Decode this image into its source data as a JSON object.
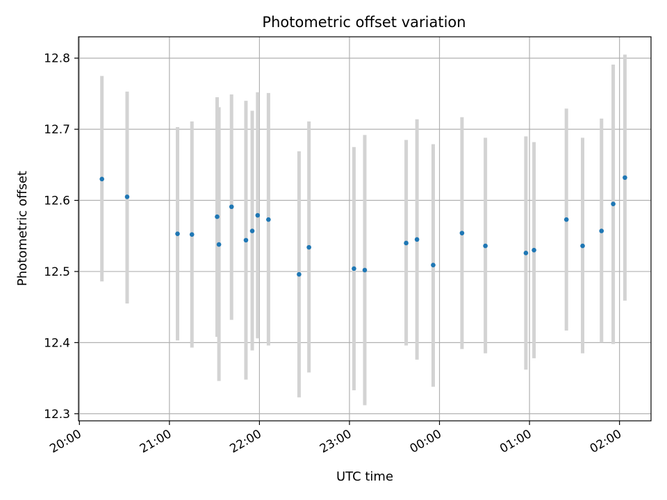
{
  "chart_data": {
    "type": "scatter",
    "title": "Photometric offset variation",
    "xlabel": "UTC time",
    "ylabel": "Photometric offset",
    "x_unit": "hours after 20:00 UTC",
    "xlim": [
      -0.01,
      6.35
    ],
    "ylim": [
      12.29,
      12.83
    ],
    "x_ticks": [
      {
        "value": 0,
        "label": "20:00"
      },
      {
        "value": 1,
        "label": "21:00"
      },
      {
        "value": 2,
        "label": "22:00"
      },
      {
        "value": 3,
        "label": "23:00"
      },
      {
        "value": 4,
        "label": "00:00"
      },
      {
        "value": 5,
        "label": "01:00"
      },
      {
        "value": 6,
        "label": "02:00"
      }
    ],
    "y_ticks": [
      12.3,
      12.4,
      12.5,
      12.6,
      12.7,
      12.8
    ],
    "y_tick_labels": [
      "12.3",
      "12.4",
      "12.5",
      "12.6",
      "12.7",
      "12.8"
    ],
    "grid": true,
    "colors": {
      "marker": "#1f77b4",
      "errorbar": "#d3d3d3",
      "grid": "#b0b0b0",
      "axes": "#000000"
    },
    "series": [
      {
        "points": [
          {
            "x": 0.25,
            "y": 12.63,
            "ylo": 12.486,
            "yhi": 12.775
          },
          {
            "x": 0.53,
            "y": 12.605,
            "ylo": 12.455,
            "yhi": 12.753
          },
          {
            "x": 1.09,
            "y": 12.553,
            "ylo": 12.403,
            "yhi": 12.703
          },
          {
            "x": 1.25,
            "y": 12.552,
            "ylo": 12.393,
            "yhi": 12.711
          },
          {
            "x": 1.53,
            "y": 12.577,
            "ylo": 12.408,
            "yhi": 12.745
          },
          {
            "x": 1.55,
            "y": 12.538,
            "ylo": 12.346,
            "yhi": 12.731
          },
          {
            "x": 1.69,
            "y": 12.591,
            "ylo": 12.432,
            "yhi": 12.749
          },
          {
            "x": 1.85,
            "y": 12.544,
            "ylo": 12.348,
            "yhi": 12.74
          },
          {
            "x": 1.92,
            "y": 12.557,
            "ylo": 12.389,
            "yhi": 12.726
          },
          {
            "x": 1.98,
            "y": 12.579,
            "ylo": 12.406,
            "yhi": 12.752
          },
          {
            "x": 2.1,
            "y": 12.573,
            "ylo": 12.396,
            "yhi": 12.751
          },
          {
            "x": 2.44,
            "y": 12.496,
            "ylo": 12.323,
            "yhi": 12.669
          },
          {
            "x": 2.55,
            "y": 12.534,
            "ylo": 12.358,
            "yhi": 12.711
          },
          {
            "x": 3.05,
            "y": 12.504,
            "ylo": 12.333,
            "yhi": 12.675
          },
          {
            "x": 3.17,
            "y": 12.502,
            "ylo": 12.312,
            "yhi": 12.692
          },
          {
            "x": 3.63,
            "y": 12.54,
            "ylo": 12.396,
            "yhi": 12.685
          },
          {
            "x": 3.75,
            "y": 12.545,
            "ylo": 12.376,
            "yhi": 12.714
          },
          {
            "x": 3.93,
            "y": 12.509,
            "ylo": 12.338,
            "yhi": 12.679
          },
          {
            "x": 4.25,
            "y": 12.554,
            "ylo": 12.391,
            "yhi": 12.717
          },
          {
            "x": 4.51,
            "y": 12.536,
            "ylo": 12.385,
            "yhi": 12.688
          },
          {
            "x": 4.96,
            "y": 12.526,
            "ylo": 12.362,
            "yhi": 12.69
          },
          {
            "x": 5.05,
            "y": 12.53,
            "ylo": 12.378,
            "yhi": 12.682
          },
          {
            "x": 5.41,
            "y": 12.573,
            "ylo": 12.417,
            "yhi": 12.729
          },
          {
            "x": 5.59,
            "y": 12.536,
            "ylo": 12.385,
            "yhi": 12.688
          },
          {
            "x": 5.8,
            "y": 12.557,
            "ylo": 12.4,
            "yhi": 12.715
          },
          {
            "x": 5.93,
            "y": 12.595,
            "ylo": 12.398,
            "yhi": 12.791
          },
          {
            "x": 6.06,
            "y": 12.632,
            "ylo": 12.459,
            "yhi": 12.805
          }
        ]
      }
    ]
  }
}
